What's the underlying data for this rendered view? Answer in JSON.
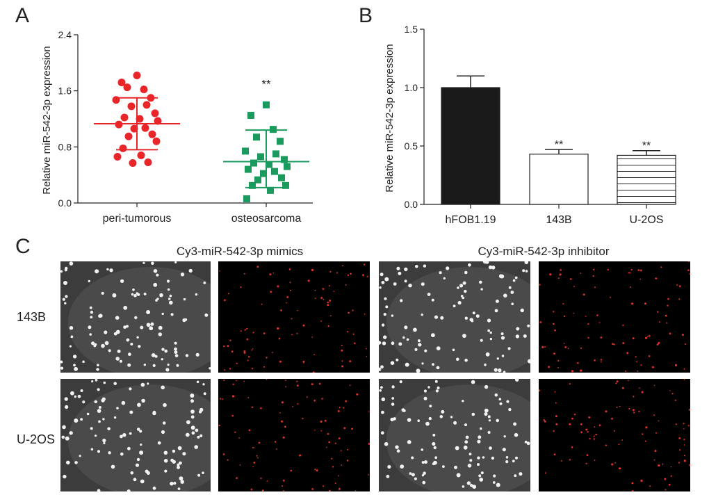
{
  "panels": {
    "a_letter": "A",
    "b_letter": "B",
    "c_letter": "C"
  },
  "chart_data": [
    {
      "panel": "A",
      "type": "scatter",
      "ylabel": "Relative miR-542-3p expression",
      "xlabel": "",
      "ylim": [
        0,
        2.4
      ],
      "yticks": [
        "0.0",
        "0.8",
        "1.6",
        "2.4"
      ],
      "categories": [
        "peri-tumorous",
        "osteosarcoma"
      ],
      "series": [
        {
          "name": "peri-tumorous",
          "marker": "circle",
          "color": "#e8262a",
          "values": [
            1.82,
            1.72,
            1.62,
            1.65,
            1.5,
            1.47,
            1.4,
            1.38,
            1.28,
            1.22,
            1.2,
            1.17,
            1.12,
            1.07,
            1.06,
            0.98,
            0.95,
            0.88,
            0.78,
            0.68,
            0.66,
            0.58,
            0.57
          ],
          "mean": 1.13,
          "sd_upper": 1.5,
          "sd_lower": 0.76
        },
        {
          "name": "osteosarcoma",
          "marker": "square",
          "color": "#1a9a5c",
          "values": [
            1.4,
            1.25,
            1.05,
            0.94,
            0.88,
            0.74,
            0.7,
            0.66,
            0.62,
            0.57,
            0.55,
            0.52,
            0.48,
            0.45,
            0.42,
            0.36,
            0.33,
            0.25,
            0.25,
            0.18,
            0.06
          ],
          "mean": 0.59,
          "sd_upper": 1.04,
          "sd_lower": 0.22,
          "significance": "**"
        }
      ]
    },
    {
      "panel": "B",
      "type": "bar",
      "ylabel": "Relative miR-542-3p expression",
      "xlabel": "",
      "ylim": [
        0,
        1.5
      ],
      "yticks": [
        "0.0",
        "0.5",
        "1.0",
        "1.5"
      ],
      "categories": [
        "hFOB1.19",
        "143B",
        "U-2OS"
      ],
      "values": [
        1.0,
        0.43,
        0.42
      ],
      "errors": [
        0.1,
        0.04,
        0.04
      ],
      "fills": [
        "solid-black",
        "white",
        "horizontal-lines"
      ],
      "significance": [
        "",
        "**",
        "**"
      ]
    }
  ],
  "panel_c": {
    "col_titles": [
      "Cy3-miR-542-3p mimics",
      "Cy3-miR-542-3p inhibitor"
    ],
    "row_labels": [
      "143B",
      "U-2OS"
    ]
  }
}
